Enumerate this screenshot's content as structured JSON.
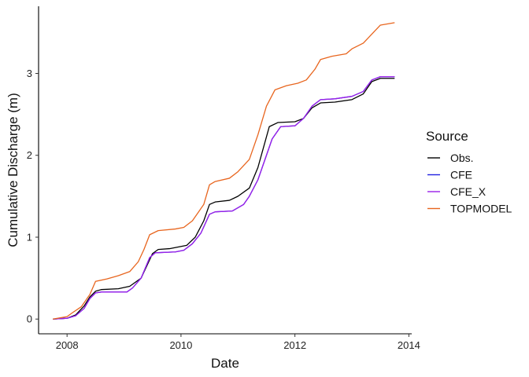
{
  "chart_data": {
    "type": "line",
    "xlabel": "Date",
    "ylabel": "Cumulative Discharge (m)",
    "x_ticks": [
      {
        "value": 2008,
        "label": "2008"
      },
      {
        "value": 2010,
        "label": "2010"
      },
      {
        "value": 2012,
        "label": "2012"
      },
      {
        "value": 2014,
        "label": "2014"
      }
    ],
    "y_ticks": [
      {
        "value": 0,
        "label": "0"
      },
      {
        "value": 1,
        "label": "1"
      },
      {
        "value": 2,
        "label": "2"
      },
      {
        "value": 3,
        "label": "3"
      }
    ],
    "xlim": [
      2007.5,
      2014.05
    ],
    "ylim": [
      -0.18,
      3.82
    ],
    "grid": false,
    "legend": {
      "title": "Source",
      "position": "right"
    },
    "series": [
      {
        "name": "Obs.",
        "color": "#000000",
        "points": [
          [
            2007.75,
            0.0
          ],
          [
            2008.0,
            0.01
          ],
          [
            2008.15,
            0.05
          ],
          [
            2008.3,
            0.16
          ],
          [
            2008.4,
            0.27
          ],
          [
            2008.5,
            0.34
          ],
          [
            2008.6,
            0.36
          ],
          [
            2008.9,
            0.37
          ],
          [
            2009.1,
            0.4
          ],
          [
            2009.3,
            0.5
          ],
          [
            2009.4,
            0.65
          ],
          [
            2009.5,
            0.8
          ],
          [
            2009.6,
            0.85
          ],
          [
            2009.8,
            0.86
          ],
          [
            2010.1,
            0.9
          ],
          [
            2010.25,
            1.0
          ],
          [
            2010.4,
            1.2
          ],
          [
            2010.5,
            1.4
          ],
          [
            2010.6,
            1.43
          ],
          [
            2010.85,
            1.45
          ],
          [
            2011.0,
            1.5
          ],
          [
            2011.2,
            1.6
          ],
          [
            2011.35,
            1.85
          ],
          [
            2011.45,
            2.1
          ],
          [
            2011.55,
            2.35
          ],
          [
            2011.7,
            2.4
          ],
          [
            2012.0,
            2.41
          ],
          [
            2012.15,
            2.45
          ],
          [
            2012.3,
            2.58
          ],
          [
            2012.45,
            2.64
          ],
          [
            2012.7,
            2.65
          ],
          [
            2013.0,
            2.68
          ],
          [
            2013.2,
            2.75
          ],
          [
            2013.35,
            2.9
          ],
          [
            2013.5,
            2.94
          ],
          [
            2013.75,
            2.94
          ]
        ]
      },
      {
        "name": "CFE",
        "color": "#2020e0",
        "points": [
          [
            2007.75,
            0.0
          ],
          [
            2008.0,
            0.01
          ],
          [
            2008.15,
            0.04
          ],
          [
            2008.3,
            0.13
          ],
          [
            2008.4,
            0.25
          ],
          [
            2008.5,
            0.32
          ],
          [
            2008.6,
            0.33
          ],
          [
            2008.9,
            0.33
          ],
          [
            2009.05,
            0.33
          ],
          [
            2009.15,
            0.38
          ],
          [
            2009.3,
            0.5
          ],
          [
            2009.45,
            0.75
          ],
          [
            2009.55,
            0.81
          ],
          [
            2009.9,
            0.82
          ],
          [
            2010.05,
            0.84
          ],
          [
            2010.2,
            0.92
          ],
          [
            2010.35,
            1.05
          ],
          [
            2010.5,
            1.28
          ],
          [
            2010.6,
            1.31
          ],
          [
            2010.9,
            1.32
          ],
          [
            2011.1,
            1.4
          ],
          [
            2011.2,
            1.5
          ],
          [
            2011.35,
            1.7
          ],
          [
            2011.5,
            2.0
          ],
          [
            2011.6,
            2.2
          ],
          [
            2011.75,
            2.35
          ],
          [
            2012.0,
            2.36
          ],
          [
            2012.15,
            2.45
          ],
          [
            2012.3,
            2.6
          ],
          [
            2012.45,
            2.68
          ],
          [
            2012.7,
            2.69
          ],
          [
            2013.0,
            2.72
          ],
          [
            2013.2,
            2.78
          ],
          [
            2013.35,
            2.92
          ],
          [
            2013.5,
            2.96
          ],
          [
            2013.75,
            2.96
          ]
        ]
      },
      {
        "name": "CFE_X",
        "color": "#9a1fe8",
        "points": [
          [
            2007.75,
            0.0
          ],
          [
            2008.0,
            0.01
          ],
          [
            2008.15,
            0.04
          ],
          [
            2008.3,
            0.13
          ],
          [
            2008.4,
            0.25
          ],
          [
            2008.5,
            0.32
          ],
          [
            2008.6,
            0.33
          ],
          [
            2008.9,
            0.33
          ],
          [
            2009.05,
            0.33
          ],
          [
            2009.15,
            0.38
          ],
          [
            2009.3,
            0.5
          ],
          [
            2009.45,
            0.75
          ],
          [
            2009.55,
            0.81
          ],
          [
            2009.9,
            0.82
          ],
          [
            2010.05,
            0.84
          ],
          [
            2010.2,
            0.92
          ],
          [
            2010.35,
            1.05
          ],
          [
            2010.5,
            1.28
          ],
          [
            2010.6,
            1.31
          ],
          [
            2010.9,
            1.32
          ],
          [
            2011.1,
            1.4
          ],
          [
            2011.2,
            1.5
          ],
          [
            2011.35,
            1.7
          ],
          [
            2011.5,
            2.0
          ],
          [
            2011.6,
            2.2
          ],
          [
            2011.75,
            2.35
          ],
          [
            2012.0,
            2.36
          ],
          [
            2012.15,
            2.45
          ],
          [
            2012.3,
            2.6
          ],
          [
            2012.45,
            2.68
          ],
          [
            2012.7,
            2.69
          ],
          [
            2013.0,
            2.72
          ],
          [
            2013.2,
            2.78
          ],
          [
            2013.35,
            2.92
          ],
          [
            2013.5,
            2.96
          ],
          [
            2013.75,
            2.96
          ]
        ]
      },
      {
        "name": "TOPMODEL",
        "color": "#e8651e",
        "points": [
          [
            2007.75,
            0.0
          ],
          [
            2008.0,
            0.03
          ],
          [
            2008.1,
            0.08
          ],
          [
            2008.25,
            0.15
          ],
          [
            2008.4,
            0.3
          ],
          [
            2008.5,
            0.46
          ],
          [
            2008.7,
            0.49
          ],
          [
            2008.9,
            0.53
          ],
          [
            2009.1,
            0.58
          ],
          [
            2009.25,
            0.7
          ],
          [
            2009.35,
            0.85
          ],
          [
            2009.45,
            1.03
          ],
          [
            2009.6,
            1.08
          ],
          [
            2009.9,
            1.1
          ],
          [
            2010.05,
            1.12
          ],
          [
            2010.2,
            1.2
          ],
          [
            2010.4,
            1.4
          ],
          [
            2010.5,
            1.64
          ],
          [
            2010.6,
            1.68
          ],
          [
            2010.85,
            1.72
          ],
          [
            2011.0,
            1.8
          ],
          [
            2011.2,
            1.95
          ],
          [
            2011.35,
            2.25
          ],
          [
            2011.5,
            2.6
          ],
          [
            2011.65,
            2.8
          ],
          [
            2011.85,
            2.85
          ],
          [
            2012.05,
            2.88
          ],
          [
            2012.2,
            2.92
          ],
          [
            2012.35,
            3.05
          ],
          [
            2012.45,
            3.17
          ],
          [
            2012.65,
            3.21
          ],
          [
            2012.9,
            3.24
          ],
          [
            2013.0,
            3.3
          ],
          [
            2013.2,
            3.37
          ],
          [
            2013.35,
            3.48
          ],
          [
            2013.5,
            3.59
          ],
          [
            2013.75,
            3.62
          ]
        ]
      }
    ]
  }
}
